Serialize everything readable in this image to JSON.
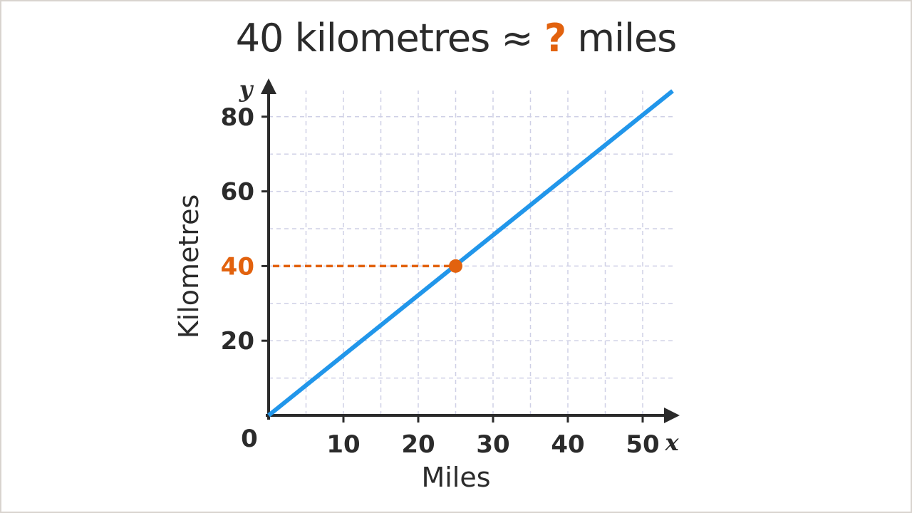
{
  "title": {
    "prefix": "40 kilometres ≈",
    "unknown": "?",
    "suffix": "miles"
  },
  "colors": {
    "line": "#2196ea",
    "highlight": "#e2620e",
    "axis": "#2b2b2b",
    "grid": "#cfd0e6"
  },
  "chart_data": {
    "type": "line",
    "xlabel": "Miles",
    "ylabel": "Kilometres",
    "x_axis_var": "x",
    "y_axis_var": "y",
    "origin_label": "0",
    "xlim": [
      0,
      54
    ],
    "ylim": [
      0,
      87
    ],
    "x_ticks": [
      10,
      20,
      30,
      40,
      50
    ],
    "y_ticks": [
      20,
      40,
      60,
      80
    ],
    "grid": true,
    "series": [
      {
        "x": [
          0,
          54
        ],
        "y": [
          0,
          86.9
        ]
      }
    ],
    "annotation": {
      "point": {
        "x": 25,
        "y": 40
      },
      "highlight_y_tick": 40,
      "dashed_guide": "horizontal"
    }
  }
}
